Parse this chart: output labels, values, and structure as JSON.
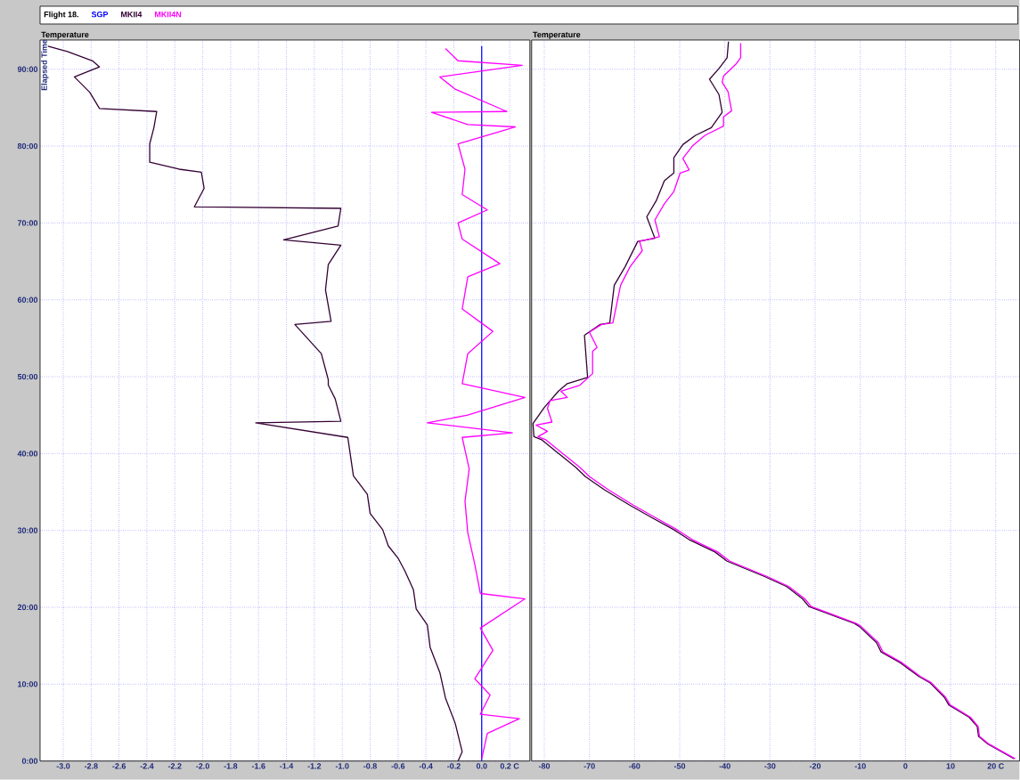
{
  "chart_data": [
    {
      "type": "line",
      "title": "Flight 18.",
      "xlabel": "Temperature",
      "ylabel": "Elapsed Time",
      "legend": "top",
      "grid": true,
      "xlim": [
        -3.166,
        0.345
      ],
      "ylim": [
        0,
        93.8
      ],
      "xticks": [
        {
          "value": -3.0,
          "label": "-3.0"
        },
        {
          "value": -2.8,
          "label": "-2.8"
        },
        {
          "value": -2.6,
          "label": "-2.6"
        },
        {
          "value": -2.4,
          "label": "-2.4"
        },
        {
          "value": -2.2,
          "label": "-2.2"
        },
        {
          "value": -2.0,
          "label": "-2.0"
        },
        {
          "value": -1.8,
          "label": "-1.8"
        },
        {
          "value": -1.6,
          "label": "-1.6"
        },
        {
          "value": -1.4,
          "label": "-1.4"
        },
        {
          "value": -1.2,
          "label": "-1.2"
        },
        {
          "value": -1.0,
          "label": "-1.0"
        },
        {
          "value": -0.8,
          "label": "-0.8"
        },
        {
          "value": -0.6,
          "label": "-0.6"
        },
        {
          "value": -0.4,
          "label": "-0.4"
        },
        {
          "value": -0.2,
          "label": "-0.2"
        },
        {
          "value": 0.0,
          "label": "0.0"
        },
        {
          "value": 0.2,
          "label": "0.2 C"
        }
      ],
      "yticks": [
        {
          "value": 0,
          "label": "0:00"
        },
        {
          "value": 10,
          "label": "10:00"
        },
        {
          "value": 20,
          "label": "20:00"
        },
        {
          "value": 30,
          "label": "30:00"
        },
        {
          "value": 40,
          "label": "40:00"
        },
        {
          "value": 50,
          "label": "50:00"
        },
        {
          "value": 60,
          "label": "60:00"
        },
        {
          "value": 70,
          "label": "70:00"
        },
        {
          "value": 80,
          "label": "80:00"
        },
        {
          "value": 90,
          "label": "90:00"
        }
      ],
      "series": [
        {
          "name": "SGP",
          "color": "#0000ff",
          "x": [
            0.0,
            0.0
          ],
          "values": [
            0,
            93.0
          ]
        },
        {
          "name": "MKII4",
          "color": "#330033",
          "x": [
            -0.17,
            -0.14,
            -0.19,
            -0.26,
            -0.3,
            -0.37,
            -0.39,
            -0.47,
            -0.49,
            -0.55,
            -0.6,
            -0.67,
            -0.71,
            -0.8,
            -0.82,
            -0.92,
            -0.94,
            -0.96,
            -1.62,
            -1.01,
            -1.05,
            -1.1,
            -1.1,
            -1.15,
            -1.34,
            -1.08,
            -1.12,
            -1.1,
            -1.01,
            -1.42,
            -1.03,
            -1.01,
            -2.06,
            -1.99,
            -2.01,
            -2.17,
            -2.38,
            -2.38,
            -2.35,
            -2.33,
            -2.74,
            -2.81,
            -2.92,
            -2.74,
            -2.79,
            -2.97,
            -3.11
          ],
          "values": [
            0,
            1.2,
            4.9,
            8.2,
            11.5,
            14.8,
            17.7,
            19.8,
            22.3,
            24.7,
            26.4,
            28.0,
            30.1,
            32.2,
            34.7,
            37.1,
            39.6,
            42.1,
            44.0,
            44.2,
            47.1,
            48.9,
            49.6,
            53.0,
            56.8,
            57.2,
            61.3,
            64.6,
            67.1,
            67.8,
            69.6,
            71.9,
            72.1,
            74.5,
            76.6,
            77.0,
            77.9,
            80.3,
            82.4,
            84.5,
            84.9,
            87.0,
            89.0,
            90.3,
            91.1,
            92.3,
            93.0
          ]
        },
        {
          "name": "MKII4N",
          "color": "#ff00ff",
          "x": [
            0.0,
            0.04,
            0.27,
            -0.01,
            0.06,
            -0.05,
            0.08,
            -0.01,
            0.31,
            -0.01,
            -0.05,
            -0.1,
            -0.12,
            -0.09,
            -0.14,
            0.22,
            -0.39,
            -0.1,
            0.31,
            -0.14,
            -0.1,
            0.08,
            -0.14,
            -0.1,
            0.13,
            -0.14,
            -0.17,
            0.04,
            -0.14,
            -0.12,
            -0.17,
            0.24,
            -0.1,
            -0.36,
            0.18,
            -0.19,
            -0.3,
            0.29,
            -0.17,
            -0.26
          ],
          "values": [
            0.3,
            3.6,
            5.5,
            6.1,
            8.6,
            10.7,
            14.4,
            17.3,
            21.1,
            21.8,
            25.6,
            29.7,
            33.8,
            38.0,
            42.1,
            42.7,
            44.0,
            45.0,
            47.3,
            49.1,
            53.0,
            55.9,
            58.8,
            63.0,
            64.7,
            67.9,
            70.0,
            71.7,
            73.7,
            77.0,
            80.3,
            82.5,
            82.8,
            84.4,
            84.5,
            87.4,
            89.0,
            90.5,
            91.1,
            92.7
          ]
        }
      ]
    },
    {
      "type": "line",
      "xlabel": "Temperature",
      "grid": true,
      "tick_labels": "x",
      "xlim": [
        -82.8,
        25.3
      ],
      "ylim": [
        0,
        93.8
      ],
      "xticks": [
        -80,
        -70,
        -60,
        -50,
        -40,
        -30,
        -20,
        -10,
        0,
        10,
        {
          "value": 20,
          "label": "20 C"
        }
      ],
      "yticks": [
        {
          "value": 0,
          "label": null
        },
        {
          "value": 10,
          "label": null
        },
        {
          "value": 20,
          "label": null
        },
        {
          "value": 30,
          "label": null
        },
        {
          "value": 40,
          "label": null
        },
        {
          "value": 50,
          "label": null
        },
        {
          "value": 60,
          "label": null
        },
        {
          "value": 70,
          "label": null
        },
        {
          "value": 80,
          "label": null
        },
        {
          "value": 90,
          "label": null
        }
      ],
      "series": [
        {
          "color": "#330033",
          "x": [
            24.1,
            18.3,
            16.2,
            15.9,
            14.1,
            9.6,
            8.6,
            5.4,
            3.0,
            -1.2,
            -5.4,
            -6.4,
            -10.2,
            -11.3,
            -21.4,
            -22.8,
            -26.3,
            -31.2,
            -39.5,
            -42.2,
            -47.9,
            -51.3,
            -56.3,
            -61.1,
            -66.7,
            -70.9,
            -73.0,
            -76.4,
            -80.6,
            -82.3,
            -82.5,
            -80.0,
            -76.9,
            -74.9,
            -70.4,
            -71.1,
            -67.6,
            -65.5,
            -64.5,
            -62.1,
            -59.3,
            -55.5,
            -57.3,
            -55.2,
            -53.4,
            -51.3,
            -51.3,
            -49.3,
            -46.5,
            -43.0,
            -40.6,
            -41.3,
            -43.4,
            -41.3,
            -39.5,
            -39.2
          ],
          "values": [
            0.3,
            2.2,
            3.2,
            4.5,
            5.7,
            7.3,
            8.3,
            10.2,
            11.0,
            12.8,
            14.2,
            15.4,
            17.5,
            17.9,
            20.1,
            21.1,
            22.7,
            24.0,
            26.0,
            27.2,
            28.8,
            30.1,
            31.7,
            33.3,
            35.3,
            37.0,
            38.2,
            39.8,
            41.8,
            42.2,
            43.9,
            46.0,
            48.1,
            49.1,
            49.9,
            55.4,
            56.8,
            57.0,
            61.9,
            64.3,
            67.6,
            68.0,
            70.8,
            72.9,
            75.5,
            76.5,
            78.5,
            80.2,
            81.4,
            82.4,
            84.4,
            86.7,
            88.7,
            90.1,
            91.5,
            93.6
          ]
        },
        {
          "color": "#ff00ff",
          "x": [
            24.3,
            18.5,
            16.4,
            16.1,
            14.4,
            9.9,
            8.9,
            5.7,
            3.3,
            -0.8,
            -5.0,
            -6.0,
            -9.8,
            -10.9,
            -20.9,
            -22.3,
            -25.8,
            -30.6,
            -38.9,
            -41.6,
            -47.2,
            -50.6,
            -55.5,
            -60.3,
            -65.8,
            -70.0,
            -72.1,
            -75.5,
            -79.7,
            -81.4,
            -79.3,
            -81.8,
            -78.3,
            -79.3,
            -78.7,
            -74.9,
            -76.3,
            -72.1,
            -69.3,
            -69.3,
            -68.3,
            -70.0,
            -67.3,
            -64.8,
            -63.1,
            -61.0,
            -58.3,
            -58.9,
            -54.5,
            -55.5,
            -53.4,
            -51.3,
            -49.9,
            -47.9,
            -49.3,
            -47.2,
            -44.4,
            -40.3,
            -40.3,
            -38.5,
            -39.3,
            -40.6,
            -40.3,
            -37.5,
            -36.5,
            -36.5
          ],
          "values": [
            0.3,
            2.2,
            3.2,
            4.5,
            5.7,
            7.3,
            8.3,
            10.2,
            11.0,
            12.8,
            14.2,
            15.4,
            17.5,
            17.9,
            20.1,
            21.1,
            22.7,
            24.0,
            26.0,
            27.2,
            28.8,
            30.1,
            31.7,
            33.3,
            35.3,
            37.0,
            38.2,
            39.8,
            41.8,
            42.2,
            42.9,
            43.7,
            44.1,
            45.9,
            46.9,
            47.3,
            48.1,
            48.9,
            50.4,
            53.3,
            53.8,
            55.8,
            56.8,
            57.0,
            61.9,
            64.3,
            66.4,
            67.6,
            68.2,
            70.4,
            72.5,
            74.1,
            76.5,
            76.9,
            78.4,
            80.0,
            81.4,
            82.6,
            83.8,
            84.6,
            87.1,
            88.3,
            89.1,
            90.7,
            91.5,
            93.4
          ]
        }
      ]
    }
  ]
}
